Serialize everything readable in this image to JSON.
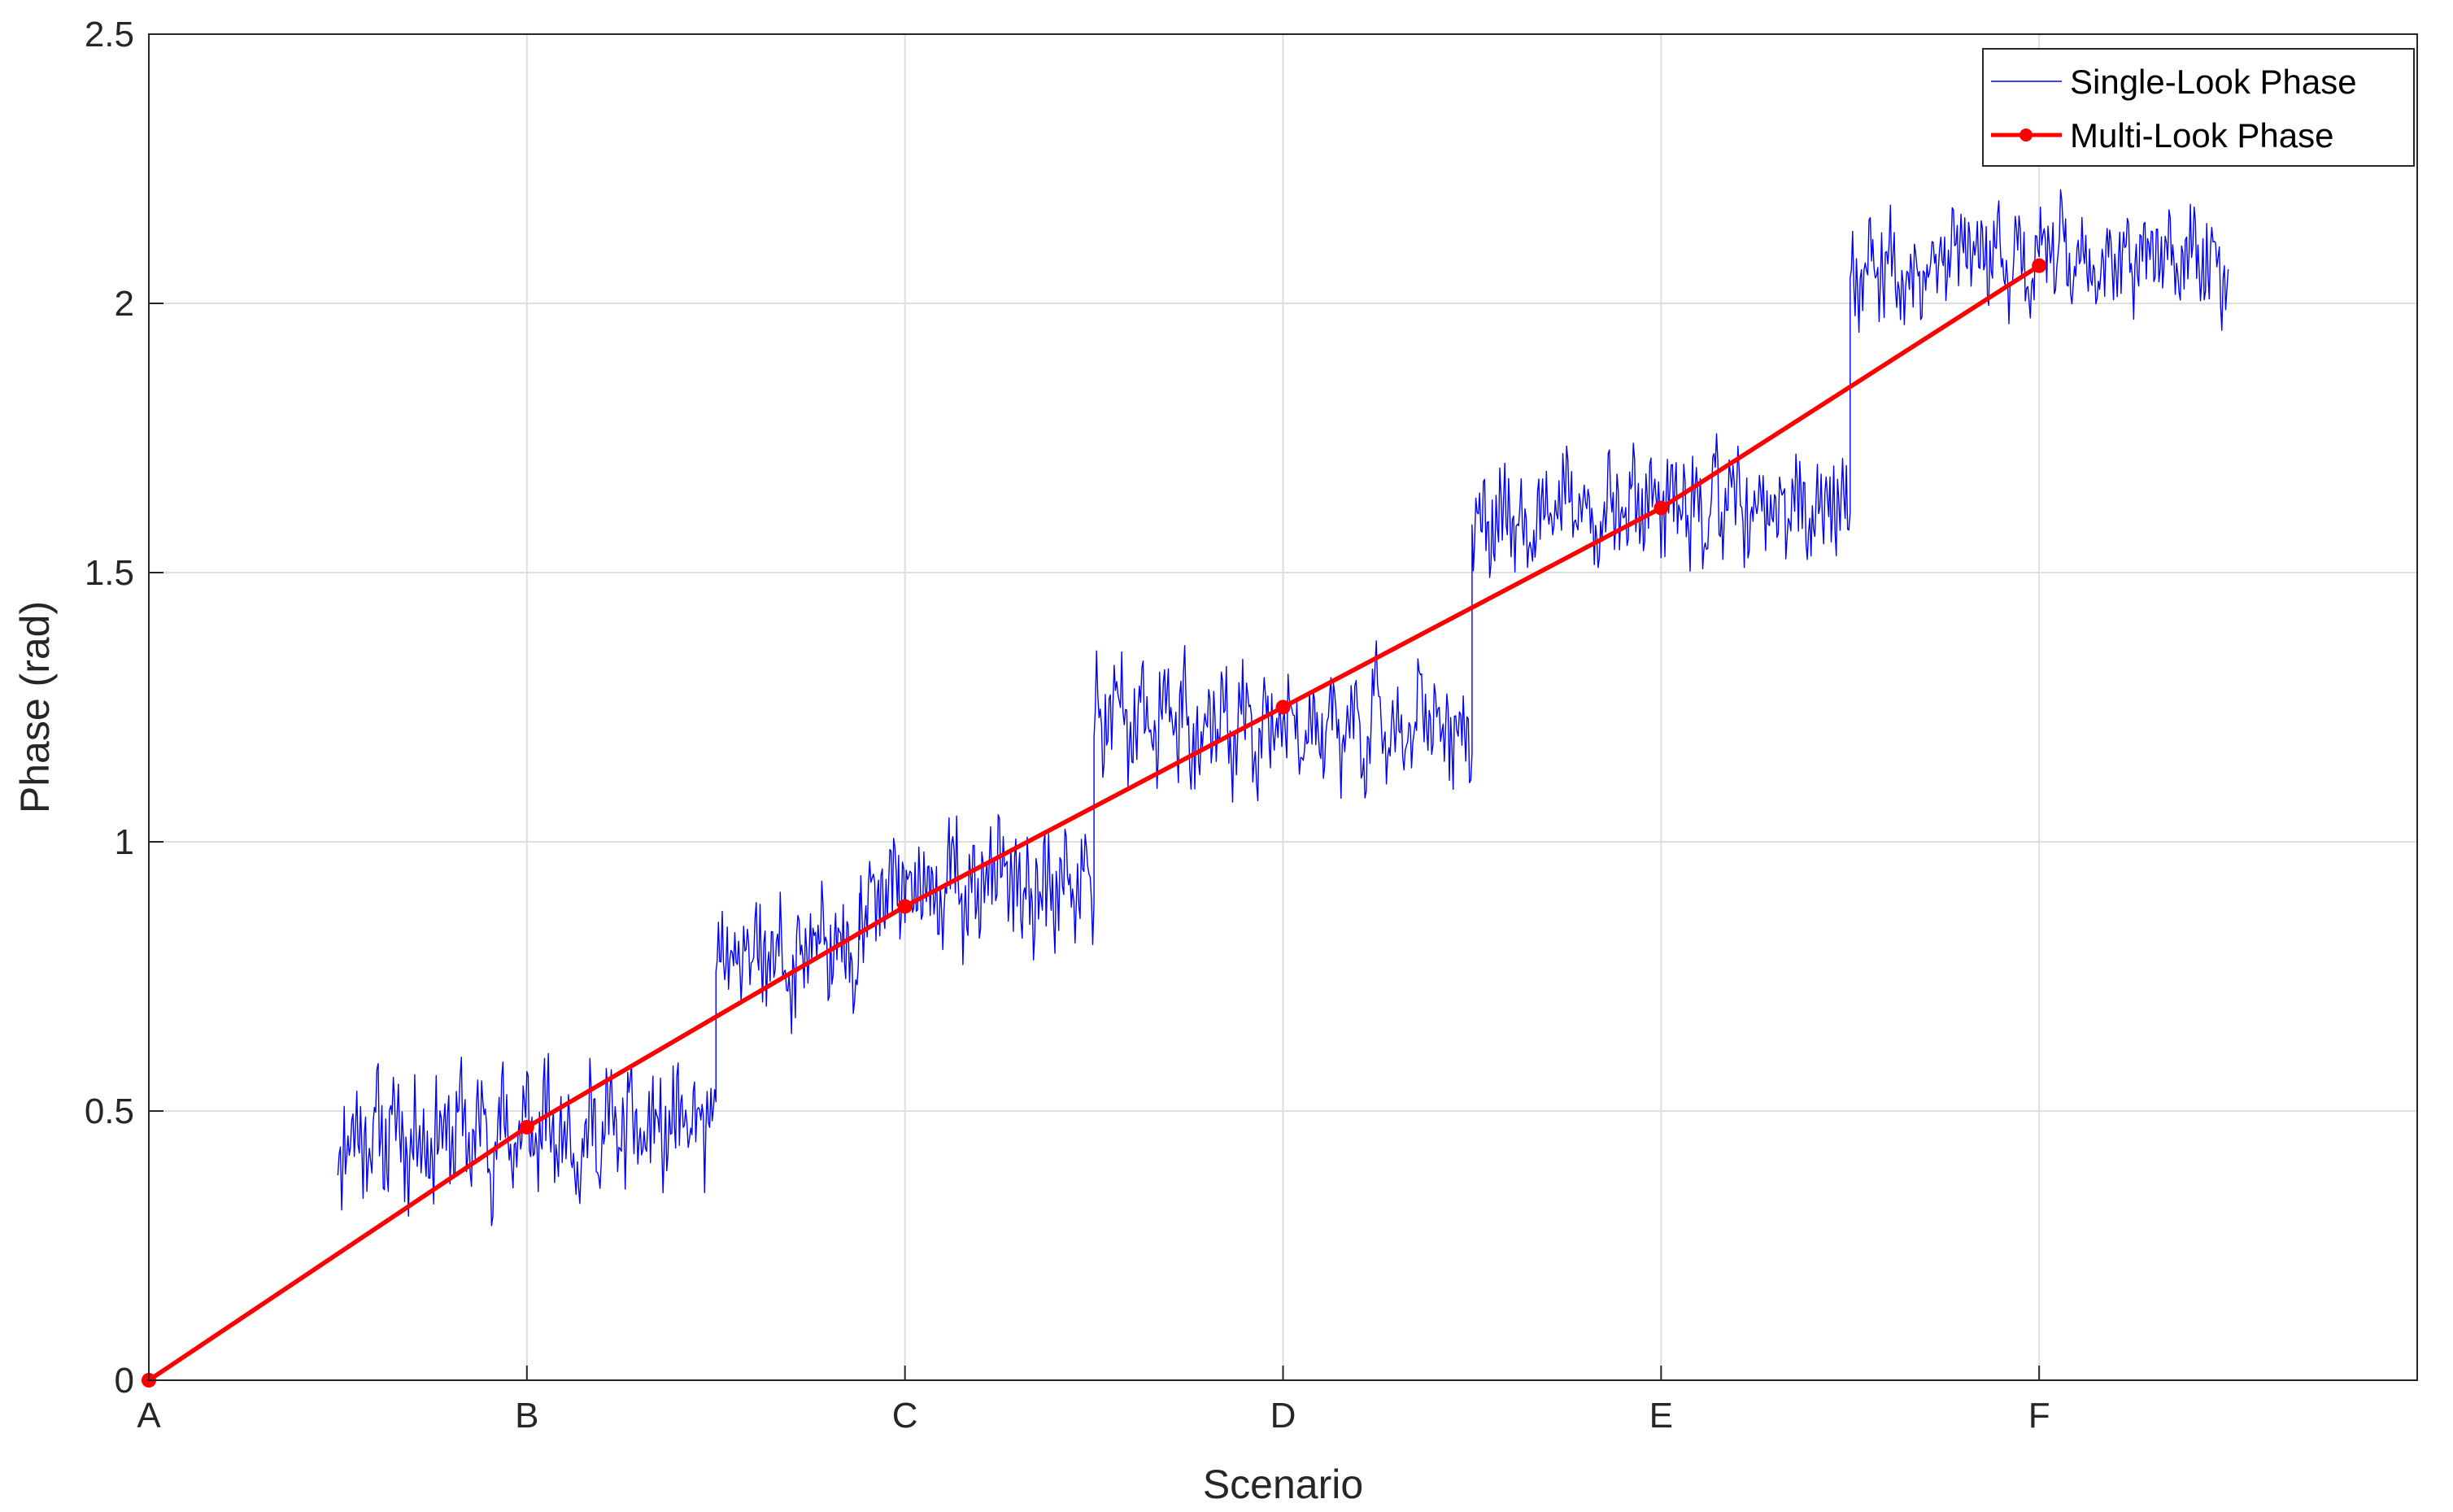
{
  "chart_data": {
    "type": "line",
    "title": "",
    "xlabel": "Scenario",
    "ylabel": "Phase (rad)",
    "x_ticks": [
      "A",
      "B",
      "C",
      "D",
      "E",
      "F"
    ],
    "x_range": [
      0,
      6
    ],
    "ylim": [
      0,
      2.5
    ],
    "y_ticks": [
      "0",
      "0.5",
      "1",
      "1.5",
      "2",
      "2.5"
    ],
    "grid": true,
    "legend_position": "top-right",
    "series": [
      {
        "name": "Single-Look Phase",
        "color": "#0000ff",
        "segments": [
          {
            "x_start": 0.5,
            "x_end": 1.5,
            "center": 0.46,
            "noise": 0.12,
            "seed": 11
          },
          {
            "x_start": 1.5,
            "x_end": 1.88,
            "center": 0.8,
            "noise": 0.12,
            "seed": 23
          },
          {
            "x_start": 1.88,
            "x_end": 2.5,
            "center": 0.92,
            "noise": 0.13,
            "seed": 37
          },
          {
            "x_start": 2.5,
            "x_end": 3.5,
            "center": 1.22,
            "noise": 0.12,
            "seed": 41
          },
          {
            "x_start": 3.5,
            "x_end": 4.5,
            "center": 1.62,
            "noise": 0.11,
            "seed": 53
          },
          {
            "x_start": 4.5,
            "x_end": 5.5,
            "center": 2.08,
            "noise": 0.1,
            "seed": 67
          }
        ]
      },
      {
        "name": "Multi-Look Phase",
        "color": "#ff0000",
        "x": [
          "A",
          "B",
          "C",
          "D",
          "E",
          "F"
        ],
        "values": [
          0,
          0.47,
          0.88,
          1.25,
          1.62,
          2.07
        ]
      }
    ]
  }
}
